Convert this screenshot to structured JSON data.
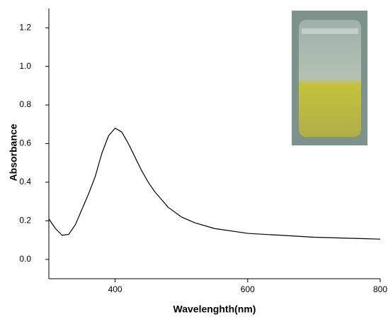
{
  "chart_data": {
    "type": "line",
    "xlabel": "Wavelenghth(nm)",
    "ylabel": "Absorbance",
    "x": [
      300,
      310,
      320,
      330,
      340,
      350,
      360,
      370,
      380,
      390,
      400,
      410,
      420,
      430,
      440,
      450,
      460,
      470,
      480,
      500,
      520,
      550,
      600,
      650,
      700,
      750,
      800
    ],
    "values": [
      0.21,
      0.16,
      0.125,
      0.13,
      0.18,
      0.26,
      0.34,
      0.43,
      0.55,
      0.64,
      0.68,
      0.66,
      0.6,
      0.53,
      0.46,
      0.4,
      0.35,
      0.31,
      0.27,
      0.22,
      0.19,
      0.16,
      0.135,
      0.125,
      0.115,
      0.11,
      0.105
    ],
    "color": "#000000",
    "xlim": [
      300,
      800
    ],
    "xticks": [
      400,
      600,
      800
    ],
    "ylim": [
      -0.1,
      1.3
    ],
    "yticks": [
      {
        "value": 0,
        "label": "0.0"
      },
      0.2,
      0.4,
      0.6,
      0.8,
      {
        "value": 1,
        "label": "1.0"
      },
      1.2
    ],
    "grid": false
  }
}
